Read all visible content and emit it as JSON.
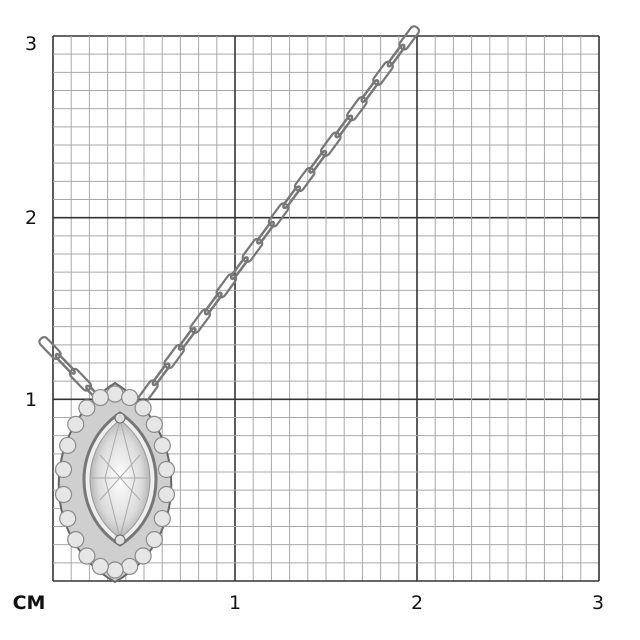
{
  "scale": {
    "unit_label": "CM",
    "x_ticks": [
      "1",
      "2",
      "3"
    ],
    "y_ticks": [
      "1",
      "2",
      "3"
    ],
    "range_cm": [
      0,
      3
    ],
    "minor_divisions_per_cm": 10
  },
  "image": {
    "subject": "marquise-pendant-necklace",
    "metal_color": "#c8c8c8",
    "major_grid_color": "#333333",
    "minor_grid_color": "#a8a8a8"
  }
}
